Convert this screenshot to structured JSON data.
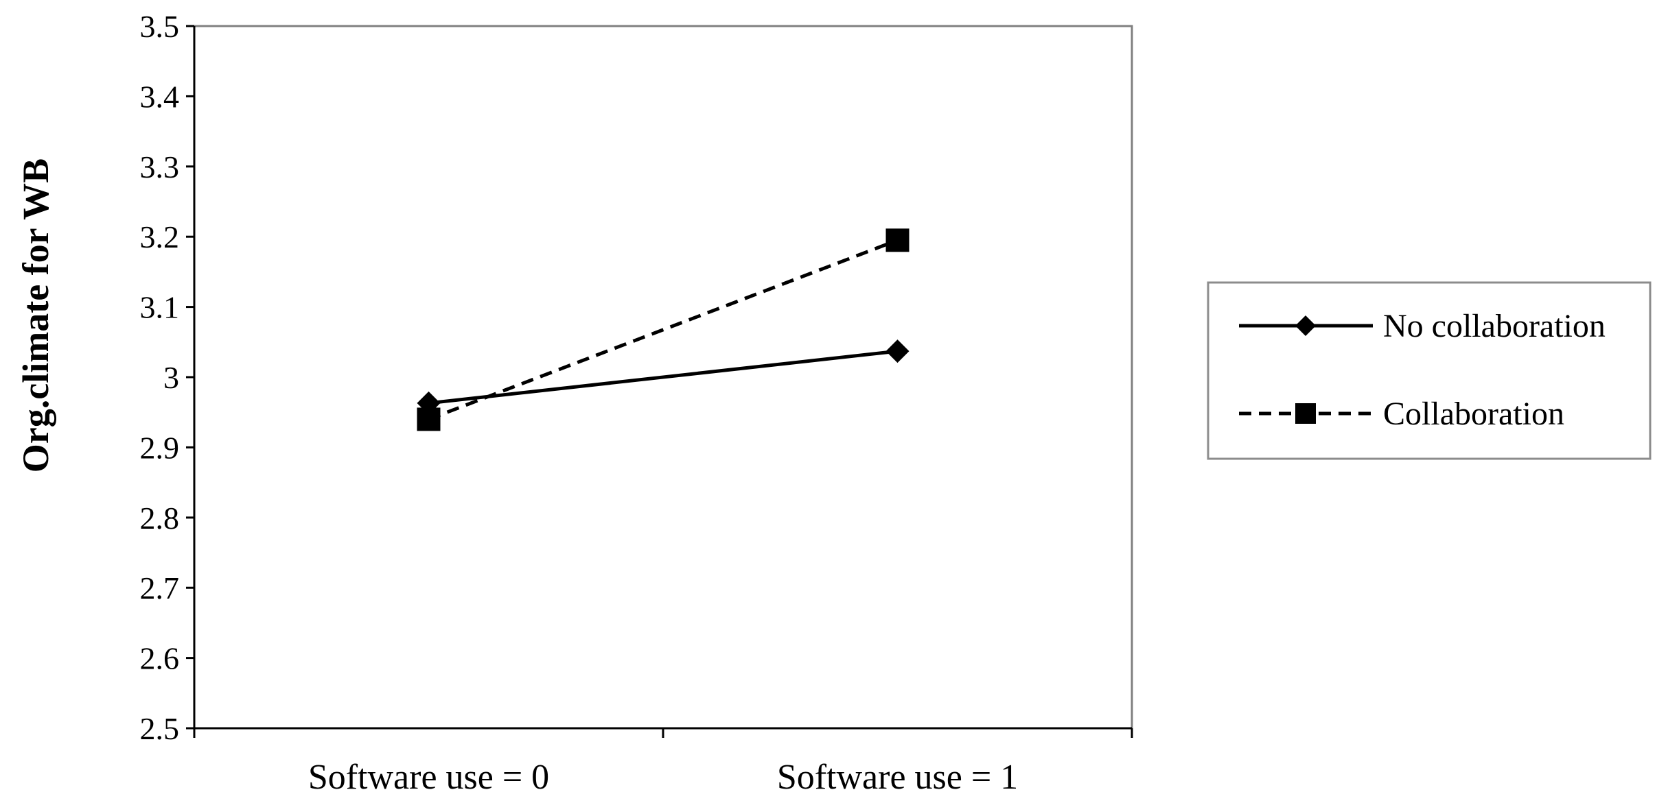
{
  "chart_data": {
    "type": "line",
    "title": "",
    "xlabel": "",
    "ylabel": "Org.climate for WB",
    "categories": [
      "Software use = 0",
      "Software use = 1"
    ],
    "ylim": [
      2.5,
      3.5
    ],
    "yticks": [
      2.5,
      2.6,
      2.7,
      2.8,
      2.9,
      3,
      3.1,
      3.2,
      3.3,
      3.4,
      3.5
    ],
    "ytick_labels": [
      "2.5",
      "2.6",
      "2.7",
      "2.8",
      "2.9",
      "3",
      "3.1",
      "3.2",
      "3.3",
      "3.4",
      "3.5"
    ],
    "grid": false,
    "legend_position": "right",
    "series": [
      {
        "name": "No collaboration",
        "values": [
          2.963,
          3.037
        ],
        "line_style": "solid",
        "marker": "diamond"
      },
      {
        "name": "Collaboration",
        "values": [
          2.94,
          3.195
        ],
        "line_style": "dashed",
        "marker": "square"
      }
    ]
  },
  "colors": {
    "ink": "#000000",
    "background": "#ffffff",
    "legend_border": "#8c8c8c"
  }
}
